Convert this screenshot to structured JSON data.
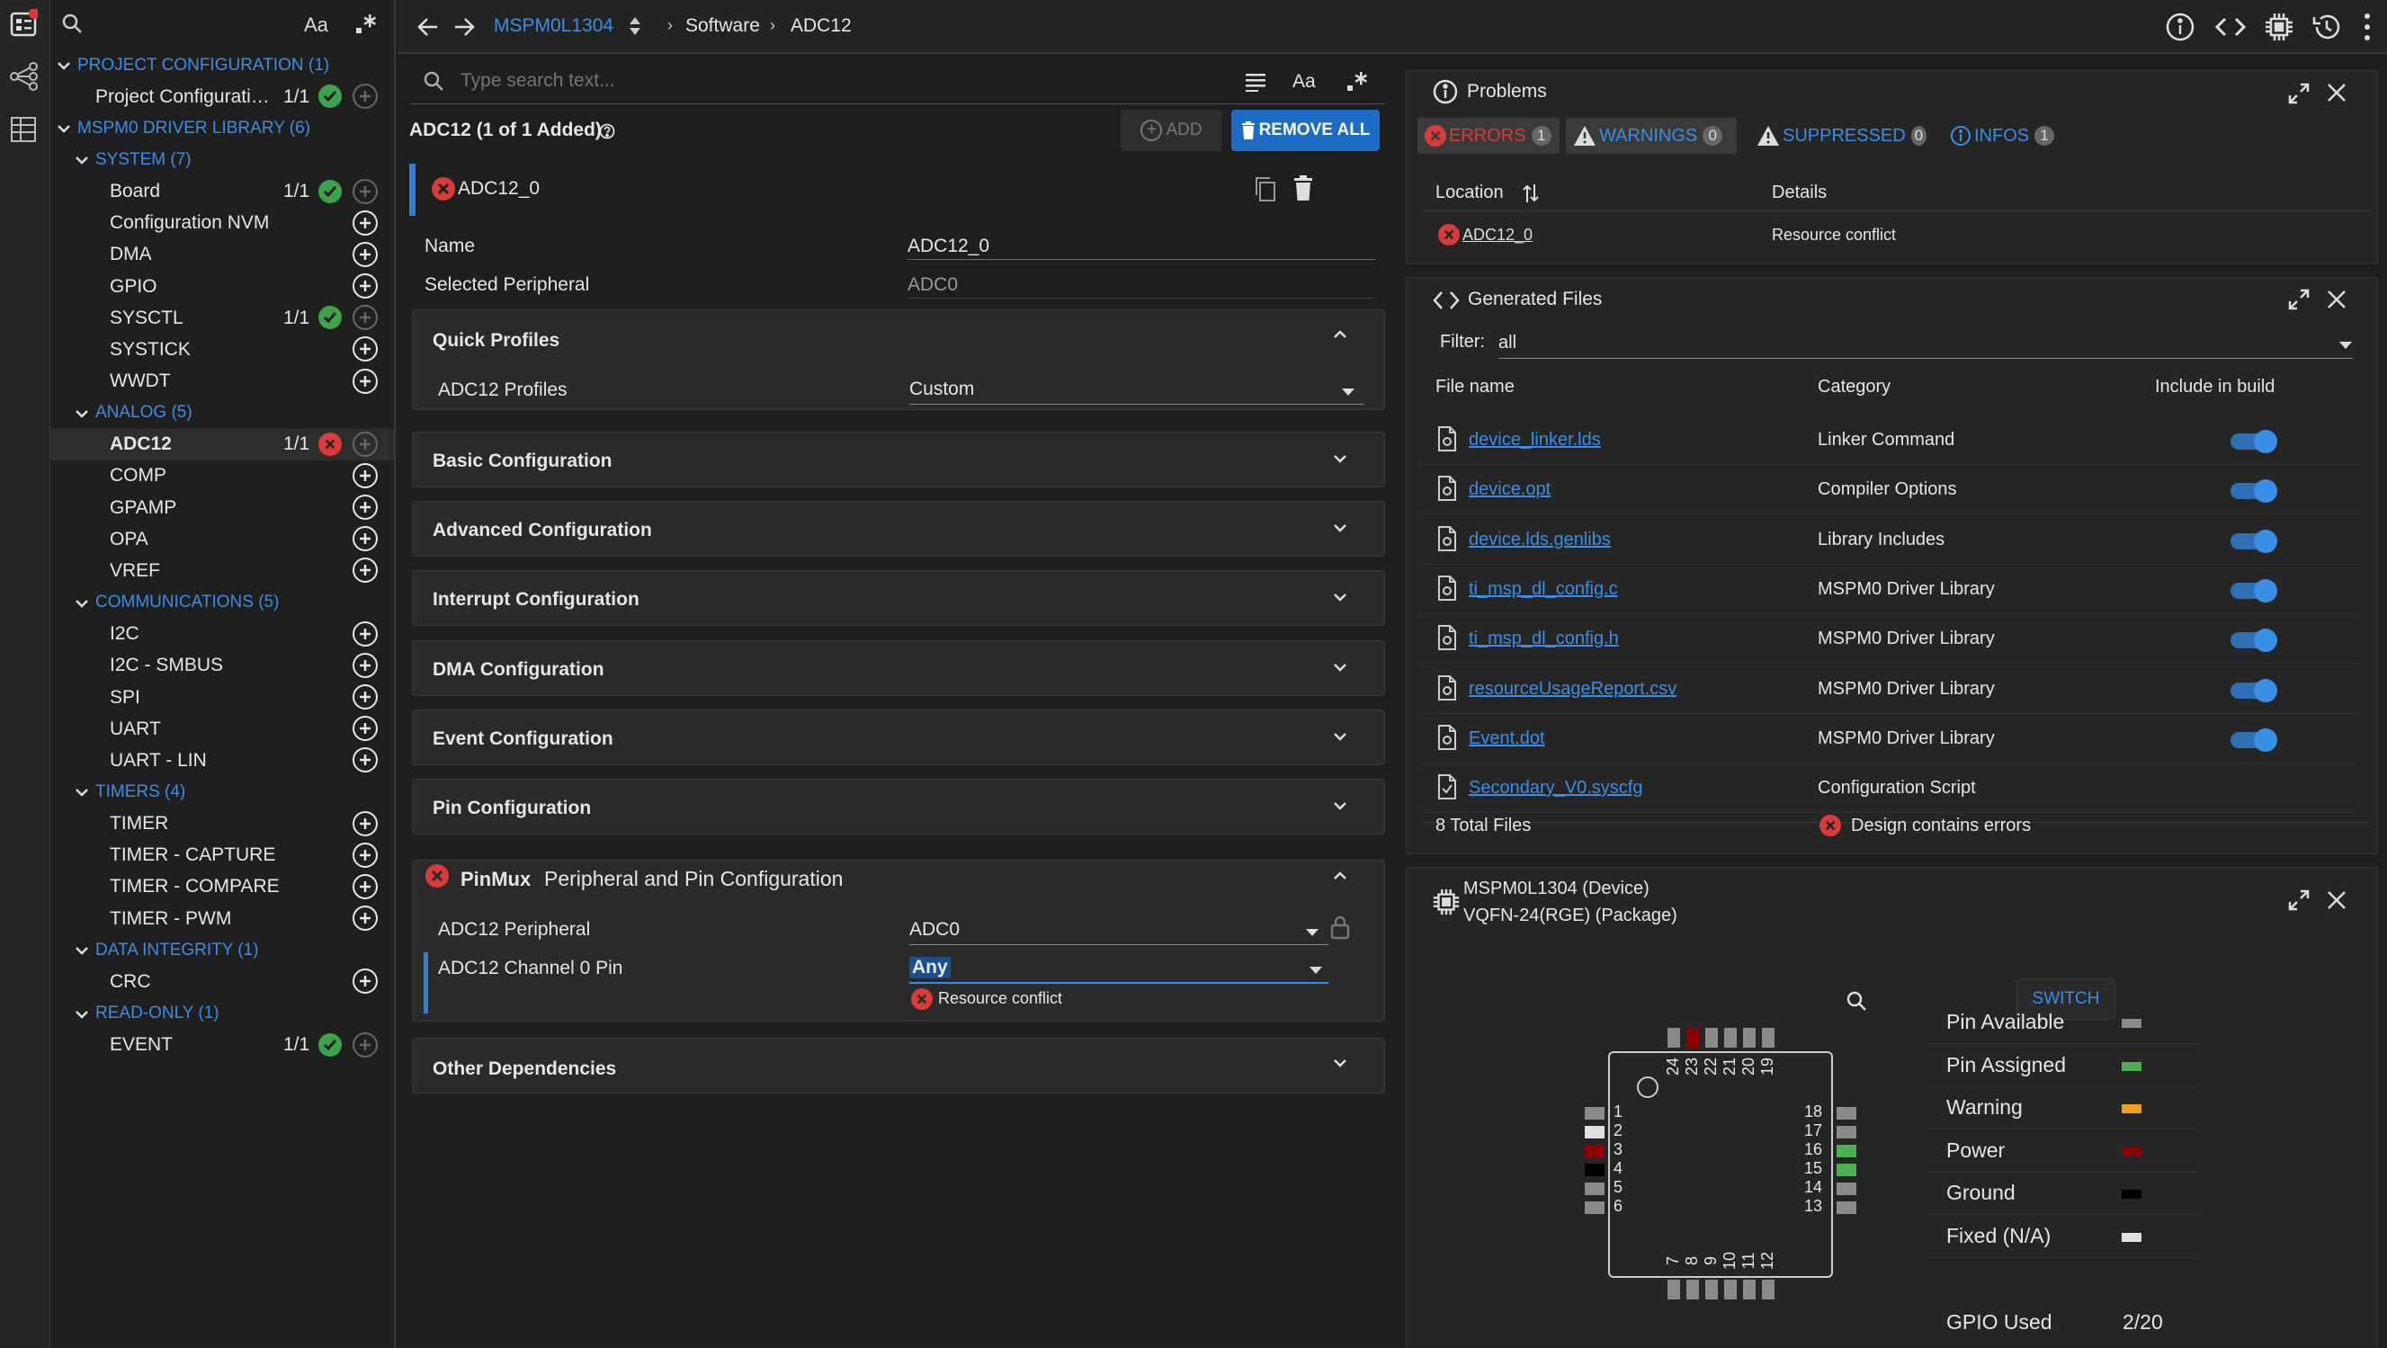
{
  "tree": {
    "search_placeholder": "",
    "case_label": "Aa",
    "items": [
      {
        "label": "PROJECT CONFIGURATION (1)",
        "type": "cat"
      },
      {
        "label": "Project Configurati…",
        "count": "1/1",
        "status": "ok"
      },
      {
        "label": "MSPM0 DRIVER LIBRARY (6)",
        "type": "cat"
      },
      {
        "label": "SYSTEM (7)",
        "type": "cat"
      },
      {
        "label": "Board",
        "count": "1/1",
        "status": "ok"
      },
      {
        "label": "Configuration NVM"
      },
      {
        "label": "DMA"
      },
      {
        "label": "GPIO"
      },
      {
        "label": "SYSCTL",
        "count": "1/1",
        "status": "ok"
      },
      {
        "label": "SYSTICK"
      },
      {
        "label": "WWDT"
      },
      {
        "label": "ANALOG (5)",
        "type": "cat"
      },
      {
        "label": "ADC12",
        "count": "1/1",
        "status": "err"
      },
      {
        "label": "COMP"
      },
      {
        "label": "GPAMP"
      },
      {
        "label": "OPA"
      },
      {
        "label": "VREF"
      },
      {
        "label": "COMMUNICATIONS (5)",
        "type": "cat"
      },
      {
        "label": "I2C"
      },
      {
        "label": "I2C - SMBUS"
      },
      {
        "label": "SPI"
      },
      {
        "label": "UART"
      },
      {
        "label": "UART - LIN"
      },
      {
        "label": "TIMERS (4)",
        "type": "cat"
      },
      {
        "label": "TIMER"
      },
      {
        "label": "TIMER - CAPTURE"
      },
      {
        "label": "TIMER - COMPARE"
      },
      {
        "label": "TIMER - PWM"
      },
      {
        "label": "DATA INTEGRITY (1)",
        "type": "cat"
      },
      {
        "label": "CRC"
      },
      {
        "label": "READ-ONLY (1)",
        "type": "cat"
      },
      {
        "label": "EVENT",
        "count": "1/1",
        "status": "ok"
      }
    ]
  },
  "topbar": {
    "device": "MSPM0L1304",
    "crumb1": "Software",
    "crumb2": "ADC12"
  },
  "mid": {
    "search_placeholder": "Type search text...",
    "case_label": "Aa",
    "module_title": "ADC12 (1 of 1 Added)",
    "add_label": "ADD",
    "remove_all_label": "REMOVE ALL",
    "instance_name": "ADC12_0",
    "name_label": "Name",
    "name_value": "ADC12_0",
    "periph_label": "Selected Peripheral",
    "periph_value": "ADC0",
    "quick_profiles": "Quick Profiles",
    "profiles_label": "ADC12 Profiles",
    "profiles_value": "Custom",
    "sections": [
      "Basic Configuration",
      "Advanced Configuration",
      "Interrupt Configuration",
      "DMA Configuration",
      "Event Configuration",
      "Pin Configuration"
    ],
    "pinmux_tag": "PinMux",
    "pinmux_title": "Peripheral and Pin Configuration",
    "adc_periph_label": "ADC12 Peripheral",
    "adc_periph_value": "ADC0",
    "ch0_label": "ADC12 Channel 0 Pin",
    "ch0_value": "Any",
    "conflict": "Resource conflict",
    "other_deps": "Other Dependencies"
  },
  "problems": {
    "title": "Problems",
    "tabs": [
      {
        "label": "ERRORS",
        "count": "1"
      },
      {
        "label": "WARNINGS",
        "count": "0"
      },
      {
        "label": "SUPPRESSED",
        "count": "0"
      },
      {
        "label": "INFOS",
        "count": "1"
      }
    ],
    "col_location": "Location",
    "col_details": "Details",
    "row_location": "ADC12_0",
    "row_details": "Resource conflict"
  },
  "generated": {
    "title": "Generated Files",
    "filter_label": "Filter:",
    "filter_value": "all",
    "col_file": "File name",
    "col_category": "Category",
    "col_include": "Include in build",
    "files": [
      {
        "name": "device_linker.lds",
        "category": "Linker Command"
      },
      {
        "name": "device.opt",
        "category": "Compiler Options"
      },
      {
        "name": "device.lds.genlibs",
        "category": "Library Includes"
      },
      {
        "name": "ti_msp_dl_config.c",
        "category": "MSPM0 Driver Library"
      },
      {
        "name": "ti_msp_dl_config.h",
        "category": "MSPM0 Driver Library"
      },
      {
        "name": "resourceUsageReport.csv",
        "category": "MSPM0 Driver Library"
      },
      {
        "name": "Event.dot",
        "category": "MSPM0 Driver Library"
      },
      {
        "name": "Secondary_V0.syscfg",
        "category": "Configuration Script"
      }
    ],
    "total": "8 Total Files",
    "status": "Design contains errors"
  },
  "device": {
    "line1": "MSPM0L1304 (Device)",
    "line2": "VQFN-24(RGE) (Package)",
    "switch_label": "SWITCH",
    "top_pins": [
      "24",
      "23",
      "22",
      "21",
      "20",
      "19"
    ],
    "left_pins": [
      "1",
      "2",
      "3",
      "4",
      "5",
      "6"
    ],
    "right_pins": [
      "18",
      "17",
      "16",
      "15",
      "14",
      "13"
    ],
    "bottom_pins": [
      "7",
      "8",
      "9",
      "10",
      "11",
      "12"
    ],
    "legend": [
      {
        "label": "Pin Available",
        "color": "#8a8a8a"
      },
      {
        "label": "Pin Assigned",
        "color": "#4caf50"
      },
      {
        "label": "Warning",
        "color": "#f0a020"
      },
      {
        "label": "Power",
        "color": "#8b0000"
      },
      {
        "label": "Ground",
        "color": "#000000"
      },
      {
        "label": "Fixed (N/A)",
        "color": "#e0e0e0"
      }
    ],
    "gpio_label": "GPIO Used",
    "gpio_value": "2/20"
  }
}
